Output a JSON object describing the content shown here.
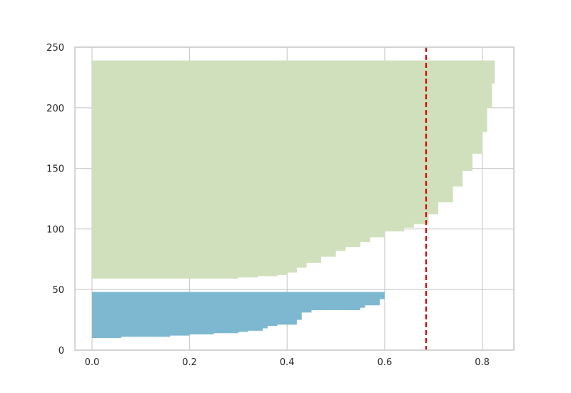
{
  "chart_data": {
    "type": "area",
    "title": "",
    "xlabel": "",
    "ylabel": "",
    "xlim": [
      -0.035,
      0.865
    ],
    "ylim": [
      0,
      250
    ],
    "xticks": [
      0.0,
      0.2,
      0.4,
      0.6,
      0.8
    ],
    "yticks": [
      0,
      50,
      100,
      150,
      200,
      250
    ],
    "xtick_labels": [
      "0.0",
      "0.2",
      "0.4",
      "0.6",
      "0.8"
    ],
    "ytick_labels": [
      "0",
      "50",
      "100",
      "150",
      "200",
      "250"
    ],
    "grid": true,
    "series": [
      {
        "color": "#7eb8d0",
        "y_range": [
          10,
          48
        ],
        "points": [
          {
            "x": 0.0,
            "y": 10
          },
          {
            "x": 0.06,
            "y": 10
          },
          {
            "x": 0.16,
            "y": 11
          },
          {
            "x": 0.2,
            "y": 12
          },
          {
            "x": 0.25,
            "y": 13
          },
          {
            "x": 0.3,
            "y": 14
          },
          {
            "x": 0.32,
            "y": 15
          },
          {
            "x": 0.35,
            "y": 16
          },
          {
            "x": 0.36,
            "y": 18
          },
          {
            "x": 0.38,
            "y": 20
          },
          {
            "x": 0.42,
            "y": 21
          },
          {
            "x": 0.43,
            "y": 25
          },
          {
            "x": 0.45,
            "y": 31
          },
          {
            "x": 0.55,
            "y": 33
          },
          {
            "x": 0.56,
            "y": 35
          },
          {
            "x": 0.59,
            "y": 37
          },
          {
            "x": 0.6,
            "y": 42
          },
          {
            "x": 0.61,
            "y": 48
          }
        ]
      },
      {
        "color": "#d0e0bd",
        "y_range": [
          59,
          239
        ],
        "points": [
          {
            "x": 0.0,
            "y": 59
          },
          {
            "x": 0.3,
            "y": 59
          },
          {
            "x": 0.34,
            "y": 60
          },
          {
            "x": 0.38,
            "y": 61
          },
          {
            "x": 0.4,
            "y": 62
          },
          {
            "x": 0.42,
            "y": 64
          },
          {
            "x": 0.44,
            "y": 68
          },
          {
            "x": 0.47,
            "y": 72
          },
          {
            "x": 0.5,
            "y": 77
          },
          {
            "x": 0.52,
            "y": 82
          },
          {
            "x": 0.55,
            "y": 85
          },
          {
            "x": 0.57,
            "y": 89
          },
          {
            "x": 0.6,
            "y": 93
          },
          {
            "x": 0.64,
            "y": 98
          },
          {
            "x": 0.66,
            "y": 101
          },
          {
            "x": 0.69,
            "y": 104
          },
          {
            "x": 0.71,
            "y": 112
          },
          {
            "x": 0.74,
            "y": 122
          },
          {
            "x": 0.76,
            "y": 135
          },
          {
            "x": 0.78,
            "y": 148
          },
          {
            "x": 0.8,
            "y": 162
          },
          {
            "x": 0.81,
            "y": 180
          },
          {
            "x": 0.82,
            "y": 200
          },
          {
            "x": 0.826,
            "y": 220
          },
          {
            "x": 0.83,
            "y": 239
          }
        ]
      }
    ],
    "reference_line": {
      "orientation": "vertical",
      "x": 0.685,
      "color": "#e00000",
      "style": "dashed"
    }
  }
}
